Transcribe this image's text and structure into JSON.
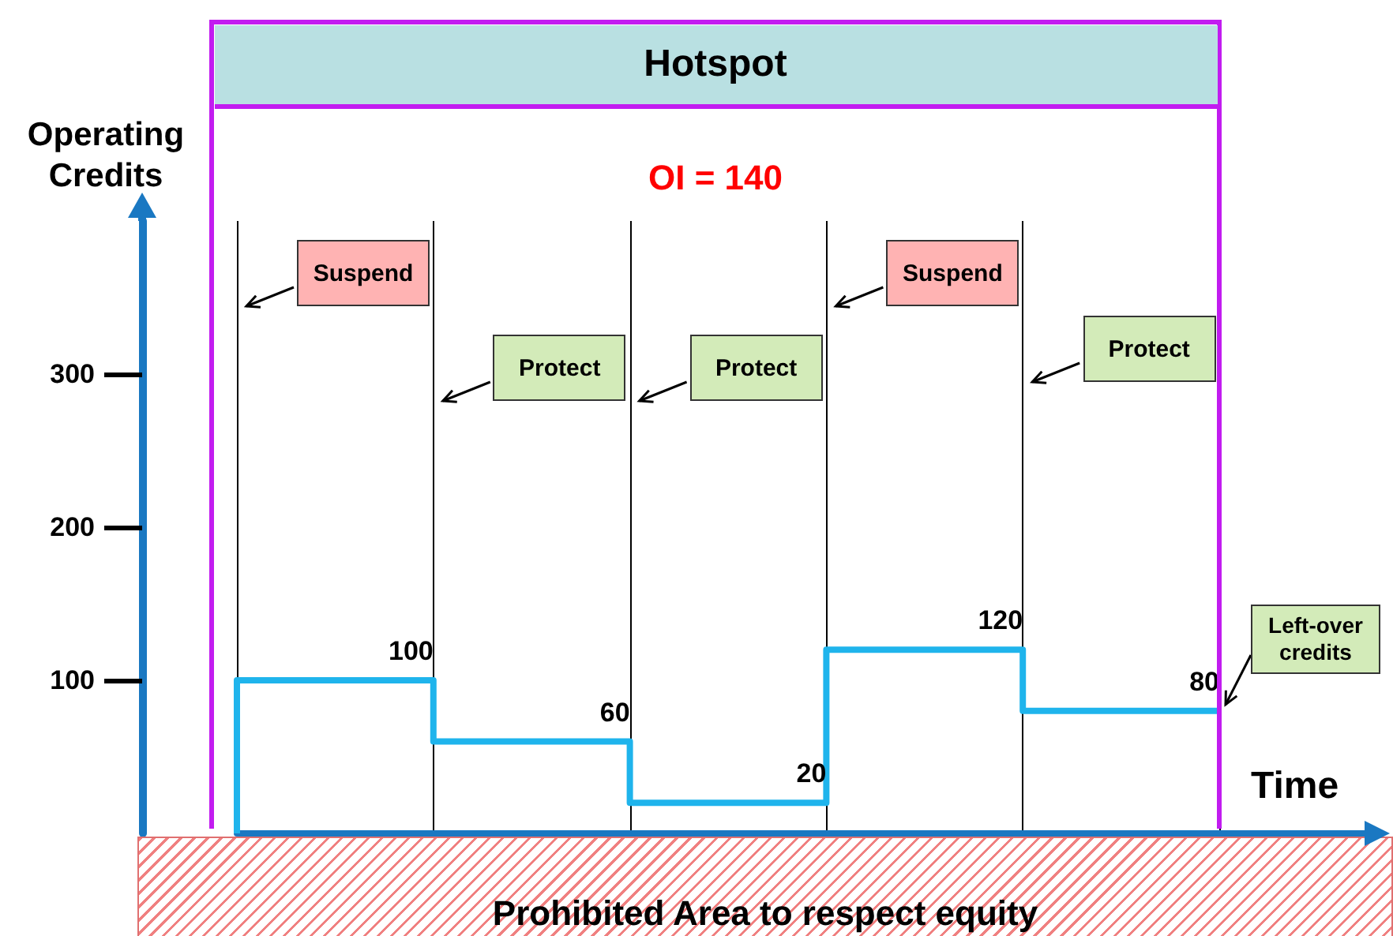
{
  "chart_data": {
    "type": "step",
    "title": "Hotspot",
    "subtitle": "OI = 140",
    "xlabel": "Time",
    "ylabel": "Operating Credits",
    "categories": [
      null,
      null,
      null,
      null,
      null,
      null
    ],
    "series": [
      {
        "color": "#1fb4ec",
        "values": [
          0,
          100,
          60,
          20,
          120,
          80
        ],
        "value_labels": [
          null,
          "100",
          "60",
          "20",
          "120",
          "80"
        ]
      }
    ],
    "ylim": [
      0,
      400
    ],
    "yticks": [
      100,
      200,
      300
    ],
    "tick_labels": "y",
    "grid": "x",
    "marker": "none",
    "line_style": "solid",
    "annotations": [
      "Suspend",
      "Protect",
      "Protect",
      "Suspend",
      "Protect",
      "Left-over credits",
      "Prohibited Area to respect equity"
    ]
  }
}
